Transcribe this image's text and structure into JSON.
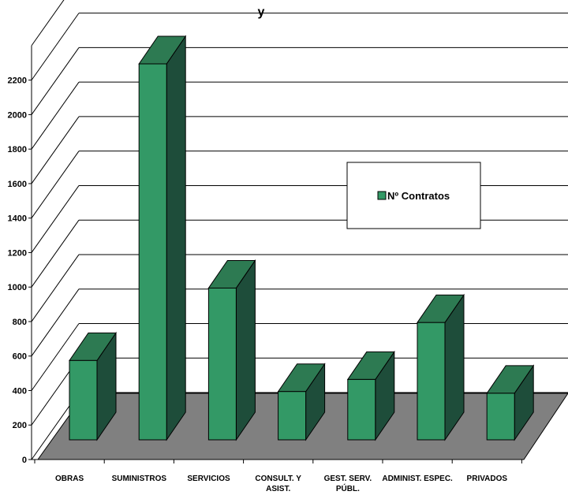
{
  "chart_data": {
    "type": "bar",
    "title": "y",
    "categories": [
      [
        "OBRAS"
      ],
      [
        "SUMINISTROS"
      ],
      [
        "SERVICIOS"
      ],
      [
        "CONSULT. Y",
        "ASIST."
      ],
      [
        "GEST. SERV.",
        "PÚBL."
      ],
      [
        "ADMINIST. ESPEC."
      ],
      [
        "PRIVADOS"
      ]
    ],
    "series": [
      {
        "name": "Nº Contratos",
        "values": [
          460,
          2180,
          880,
          280,
          350,
          680,
          270
        ]
      }
    ],
    "yticks": [
      0,
      200,
      400,
      600,
      800,
      1000,
      1200,
      1400,
      1600,
      1800,
      2000,
      2200
    ],
    "ylim": [
      0,
      2200
    ],
    "grid": true,
    "legend": "right",
    "colors": {
      "bar_front": "#339966",
      "bar_top": "#2d7a52",
      "bar_side": "#1e4d3a",
      "floor": "#808080",
      "line": "#000000"
    }
  }
}
